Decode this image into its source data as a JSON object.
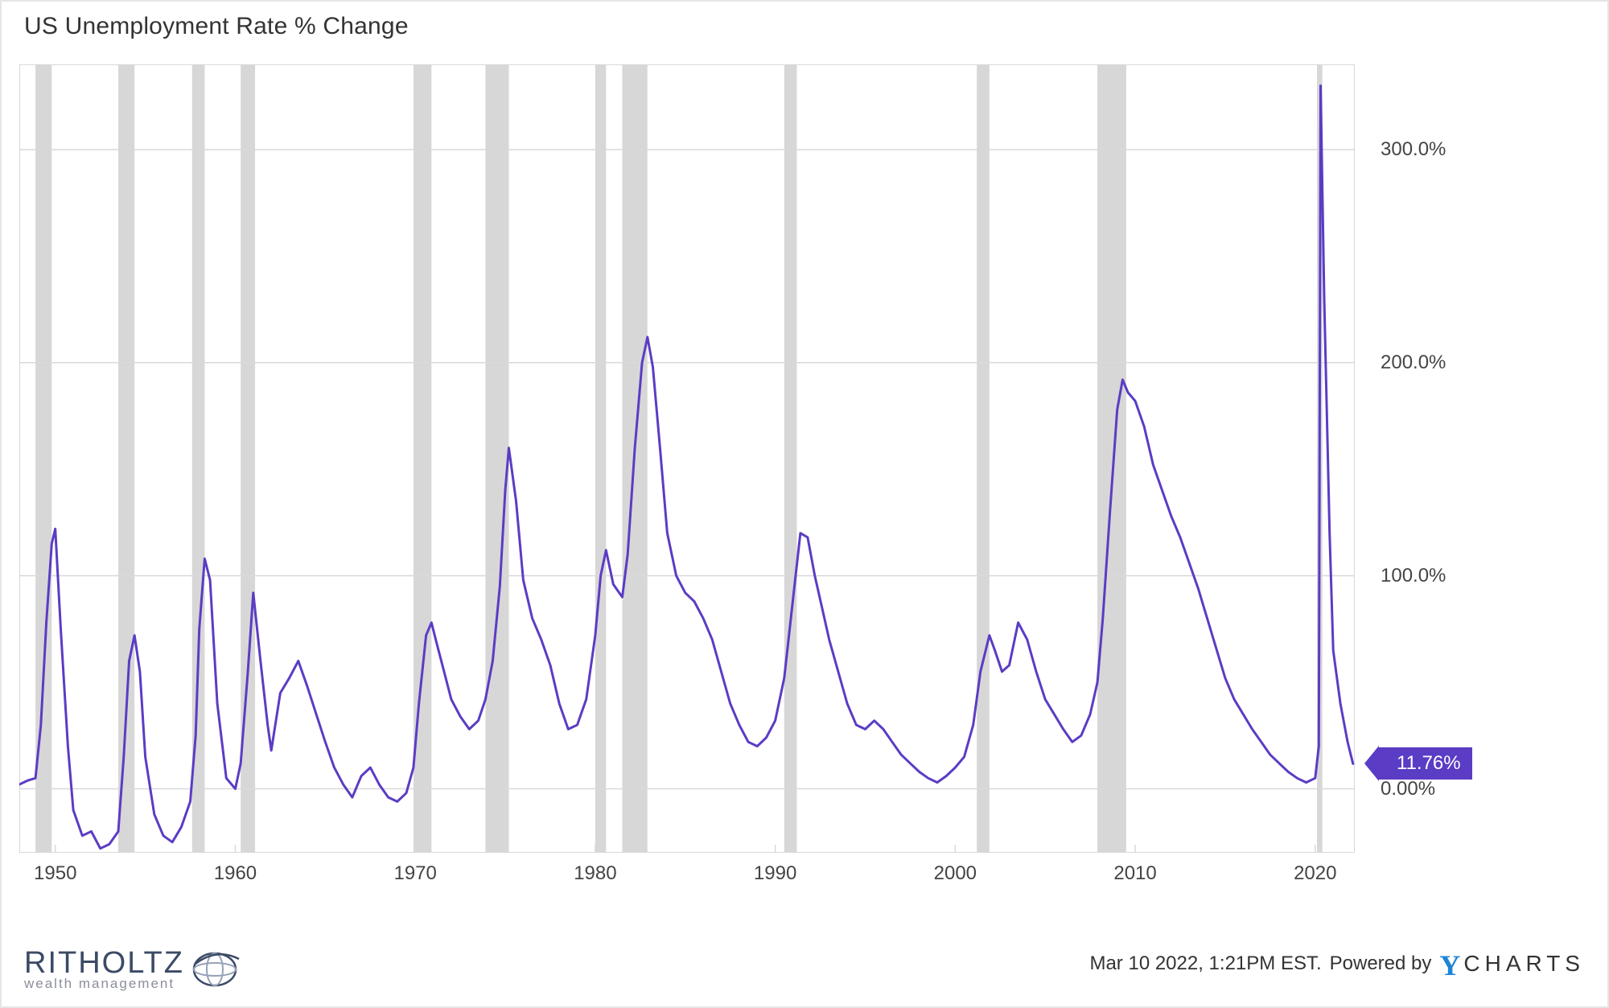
{
  "title": "US Unemployment Rate % Change",
  "chart": {
    "type": "line",
    "x_domain": [
      1948,
      2022.2
    ],
    "y_domain": [
      -30,
      340
    ],
    "background_color": "#ffffff",
    "border_color": "#d9d9d9",
    "grid_color": "#d9d9d9",
    "recession_band_color": "#d7d7d7",
    "line_color": "#5b3cc4",
    "line_width": 3,
    "x_ticks": [
      1950,
      1960,
      1970,
      1980,
      1990,
      2000,
      2010,
      2020
    ],
    "y_ticks": [
      {
        "v": 0,
        "label": "0.00%"
      },
      {
        "v": 100,
        "label": "100.0%"
      },
      {
        "v": 200,
        "label": "200.0%"
      },
      {
        "v": 300,
        "label": "300.0%"
      }
    ],
    "tick_fontsize": 24,
    "tick_color": "#444444",
    "recession_bands": [
      [
        1948.9,
        1949.8
      ],
      [
        1953.5,
        1954.4
      ],
      [
        1957.6,
        1958.3
      ],
      [
        1960.3,
        1961.1
      ],
      [
        1969.9,
        1970.9
      ],
      [
        1973.9,
        1975.2
      ],
      [
        1980.0,
        1980.6
      ],
      [
        1981.5,
        1982.9
      ],
      [
        1990.5,
        1991.2
      ],
      [
        2001.2,
        2001.9
      ],
      [
        2007.9,
        2009.5
      ],
      [
        2020.1,
        2020.4
      ]
    ],
    "series": [
      [
        1948.0,
        2
      ],
      [
        1948.5,
        4
      ],
      [
        1948.9,
        5
      ],
      [
        1949.2,
        30
      ],
      [
        1949.5,
        78
      ],
      [
        1949.8,
        115
      ],
      [
        1950.0,
        122
      ],
      [
        1950.3,
        75
      ],
      [
        1950.7,
        20
      ],
      [
        1951.0,
        -10
      ],
      [
        1951.5,
        -22
      ],
      [
        1952.0,
        -20
      ],
      [
        1952.5,
        -28
      ],
      [
        1953.0,
        -26
      ],
      [
        1953.5,
        -20
      ],
      [
        1953.8,
        15
      ],
      [
        1954.1,
        60
      ],
      [
        1954.4,
        72
      ],
      [
        1954.7,
        55
      ],
      [
        1955.0,
        15
      ],
      [
        1955.5,
        -12
      ],
      [
        1956.0,
        -22
      ],
      [
        1956.5,
        -25
      ],
      [
        1957.0,
        -18
      ],
      [
        1957.5,
        -6
      ],
      [
        1957.8,
        25
      ],
      [
        1958.0,
        75
      ],
      [
        1958.3,
        108
      ],
      [
        1958.6,
        98
      ],
      [
        1959.0,
        40
      ],
      [
        1959.5,
        5
      ],
      [
        1960.0,
        0
      ],
      [
        1960.3,
        12
      ],
      [
        1960.7,
        55
      ],
      [
        1961.0,
        92
      ],
      [
        1961.4,
        60
      ],
      [
        1961.8,
        30
      ],
      [
        1962.0,
        18
      ],
      [
        1962.5,
        45
      ],
      [
        1963.0,
        52
      ],
      [
        1963.5,
        60
      ],
      [
        1964.0,
        48
      ],
      [
        1964.5,
        35
      ],
      [
        1965.0,
        22
      ],
      [
        1965.5,
        10
      ],
      [
        1966.0,
        2
      ],
      [
        1966.5,
        -4
      ],
      [
        1967.0,
        6
      ],
      [
        1967.5,
        10
      ],
      [
        1968.0,
        2
      ],
      [
        1968.5,
        -4
      ],
      [
        1969.0,
        -6
      ],
      [
        1969.5,
        -2
      ],
      [
        1969.9,
        10
      ],
      [
        1970.2,
        40
      ],
      [
        1970.6,
        72
      ],
      [
        1970.9,
        78
      ],
      [
        1971.2,
        68
      ],
      [
        1971.6,
        55
      ],
      [
        1972.0,
        42
      ],
      [
        1972.5,
        34
      ],
      [
        1973.0,
        28
      ],
      [
        1973.5,
        32
      ],
      [
        1973.9,
        42
      ],
      [
        1974.3,
        60
      ],
      [
        1974.7,
        95
      ],
      [
        1975.0,
        140
      ],
      [
        1975.2,
        160
      ],
      [
        1975.6,
        135
      ],
      [
        1976.0,
        98
      ],
      [
        1976.5,
        80
      ],
      [
        1977.0,
        70
      ],
      [
        1977.5,
        58
      ],
      [
        1978.0,
        40
      ],
      [
        1978.5,
        28
      ],
      [
        1979.0,
        30
      ],
      [
        1979.5,
        42
      ],
      [
        1980.0,
        72
      ],
      [
        1980.3,
        100
      ],
      [
        1980.6,
        112
      ],
      [
        1981.0,
        96
      ],
      [
        1981.5,
        90
      ],
      [
        1981.8,
        110
      ],
      [
        1982.2,
        160
      ],
      [
        1982.6,
        200
      ],
      [
        1982.9,
        212
      ],
      [
        1983.2,
        198
      ],
      [
        1983.6,
        160
      ],
      [
        1984.0,
        120
      ],
      [
        1984.5,
        100
      ],
      [
        1985.0,
        92
      ],
      [
        1985.5,
        88
      ],
      [
        1986.0,
        80
      ],
      [
        1986.5,
        70
      ],
      [
        1987.0,
        55
      ],
      [
        1987.5,
        40
      ],
      [
        1988.0,
        30
      ],
      [
        1988.5,
        22
      ],
      [
        1989.0,
        20
      ],
      [
        1989.5,
        24
      ],
      [
        1990.0,
        32
      ],
      [
        1990.5,
        52
      ],
      [
        1991.0,
        90
      ],
      [
        1991.4,
        120
      ],
      [
        1991.8,
        118
      ],
      [
        1992.2,
        100
      ],
      [
        1992.6,
        85
      ],
      [
        1993.0,
        70
      ],
      [
        1993.5,
        55
      ],
      [
        1994.0,
        40
      ],
      [
        1994.5,
        30
      ],
      [
        1995.0,
        28
      ],
      [
        1995.5,
        32
      ],
      [
        1996.0,
        28
      ],
      [
        1996.5,
        22
      ],
      [
        1997.0,
        16
      ],
      [
        1997.5,
        12
      ],
      [
        1998.0,
        8
      ],
      [
        1998.5,
        5
      ],
      [
        1999.0,
        3
      ],
      [
        1999.5,
        6
      ],
      [
        2000.0,
        10
      ],
      [
        2000.5,
        15
      ],
      [
        2001.0,
        30
      ],
      [
        2001.4,
        55
      ],
      [
        2001.9,
        72
      ],
      [
        2002.2,
        65
      ],
      [
        2002.6,
        55
      ],
      [
        2003.0,
        58
      ],
      [
        2003.5,
        78
      ],
      [
        2004.0,
        70
      ],
      [
        2004.5,
        55
      ],
      [
        2005.0,
        42
      ],
      [
        2005.5,
        35
      ],
      [
        2006.0,
        28
      ],
      [
        2006.5,
        22
      ],
      [
        2007.0,
        25
      ],
      [
        2007.5,
        35
      ],
      [
        2007.9,
        50
      ],
      [
        2008.2,
        80
      ],
      [
        2008.6,
        130
      ],
      [
        2009.0,
        178
      ],
      [
        2009.3,
        192
      ],
      [
        2009.6,
        186
      ],
      [
        2010.0,
        182
      ],
      [
        2010.5,
        170
      ],
      [
        2011.0,
        152
      ],
      [
        2011.5,
        140
      ],
      [
        2012.0,
        128
      ],
      [
        2012.5,
        118
      ],
      [
        2013.0,
        106
      ],
      [
        2013.5,
        94
      ],
      [
        2014.0,
        80
      ],
      [
        2014.5,
        66
      ],
      [
        2015.0,
        52
      ],
      [
        2015.5,
        42
      ],
      [
        2016.0,
        35
      ],
      [
        2016.5,
        28
      ],
      [
        2017.0,
        22
      ],
      [
        2017.5,
        16
      ],
      [
        2018.0,
        12
      ],
      [
        2018.5,
        8
      ],
      [
        2019.0,
        5
      ],
      [
        2019.5,
        3
      ],
      [
        2020.0,
        5
      ],
      [
        2020.2,
        20
      ],
      [
        2020.3,
        330
      ],
      [
        2020.5,
        230
      ],
      [
        2020.8,
        120
      ],
      [
        2021.0,
        65
      ],
      [
        2021.4,
        40
      ],
      [
        2021.8,
        22
      ],
      [
        2022.1,
        11.76
      ]
    ],
    "current_value_label": "11.76%",
    "current_value": 11.76,
    "flag_bg": "#5b3cc4",
    "flag_text_color": "#ffffff"
  },
  "footer": {
    "left_logo_name": "RITHOLTZ",
    "left_logo_sub": "wealth management",
    "left_logo_color": "#3b4a66",
    "left_logo_sub_color": "#8a8f99",
    "timestamp": "Mar 10 2022, 1:21PM EST.",
    "powered_by": "Powered by",
    "brand_y": "Y",
    "brand_rest": "CHARTS",
    "brand_y_color": "#1f84d6",
    "brand_rest_color": "#333333"
  }
}
